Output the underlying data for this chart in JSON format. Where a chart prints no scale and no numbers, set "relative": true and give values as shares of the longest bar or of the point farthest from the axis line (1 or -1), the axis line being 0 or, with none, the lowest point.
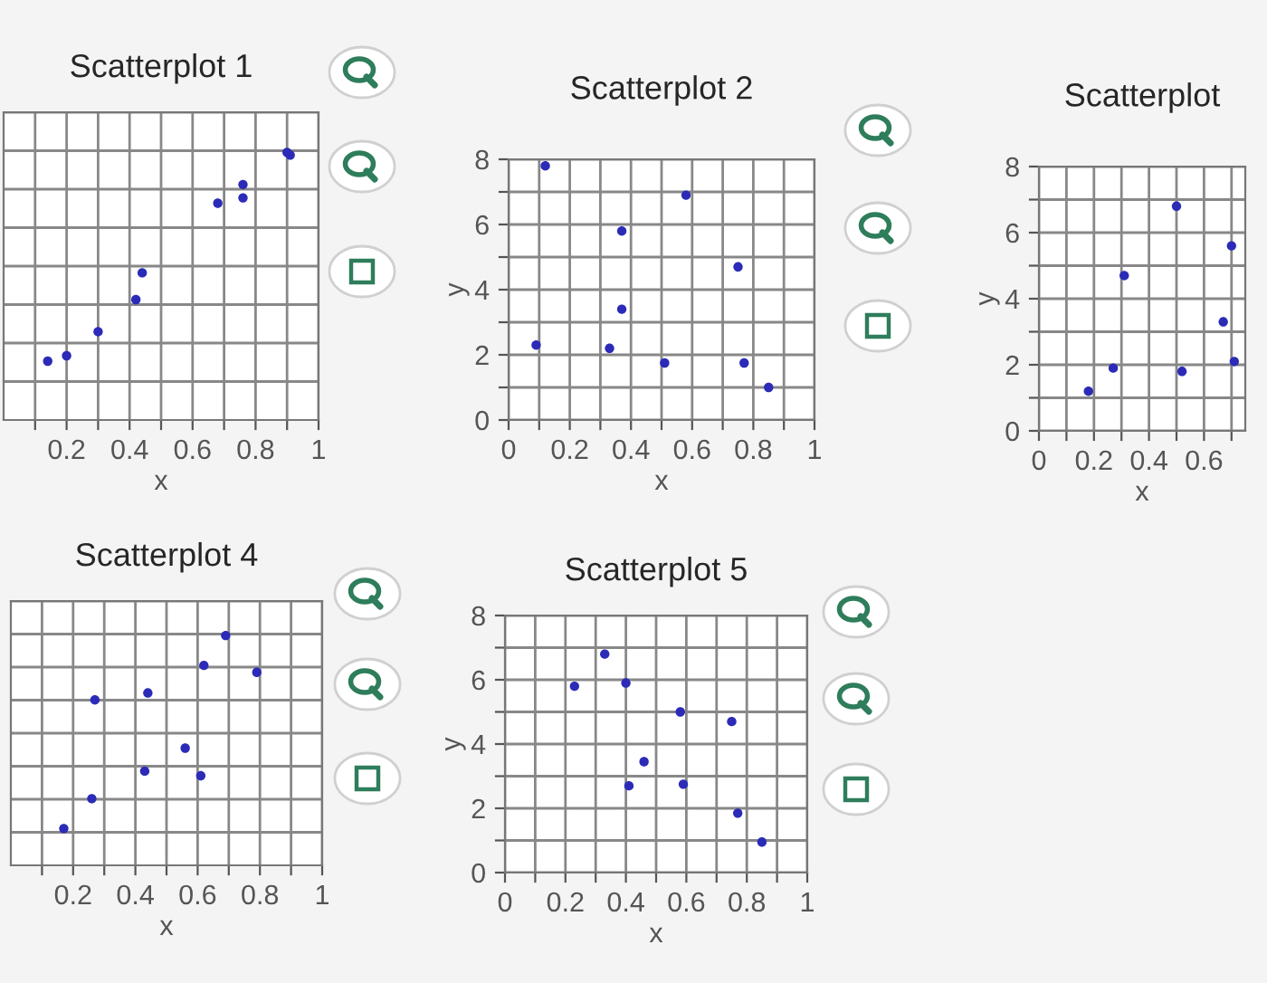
{
  "chart_data": [
    {
      "type": "scatter",
      "title": "Scatterplot 1",
      "xlabel": "x",
      "relative": true,
      "x": [
        0.14,
        0.2,
        0.3,
        0.42,
        0.44,
        0.68,
        0.76,
        0.76,
        0.9,
        0.91
      ],
      "values": [
        0.22,
        0.24,
        0.33,
        0.45,
        0.55,
        0.81,
        0.88,
        0.83,
        1,
        0.99
      ],
      "color": "#2b2bb8",
      "marker": "circle",
      "grid": true,
      "tick_labels": "x",
      "xlim": [
        0,
        1
      ],
      "xticks": [
        {
          "value": 0.1,
          "label": null
        },
        0.2,
        {
          "value": 0.3,
          "label": null
        },
        0.4,
        {
          "value": 0.5,
          "label": null
        },
        0.6,
        {
          "value": 0.7,
          "label": null
        },
        0.8,
        {
          "value": 0.9,
          "label": null
        },
        1
      ]
    },
    {
      "type": "scatter",
      "title": "Scatterplot 2",
      "xlabel": "x",
      "ylabel": "y",
      "x": [
        0.12,
        0.09,
        0.37,
        0.37,
        0.33,
        0.51,
        0.58,
        0.75,
        0.77,
        0.85
      ],
      "values": [
        7.8,
        2.3,
        5.8,
        3.4,
        2.2,
        1.75,
        6.9,
        4.7,
        1.75,
        1.0
      ],
      "color": "#2b2bb8",
      "marker": "circle",
      "grid": true,
      "xlim": [
        0,
        1
      ],
      "ylim": [
        0,
        8
      ],
      "xticks": [
        0,
        {
          "value": 0.1,
          "label": null
        },
        0.2,
        {
          "value": 0.3,
          "label": null
        },
        0.4,
        {
          "value": 0.5,
          "label": null
        },
        0.6,
        {
          "value": 0.7,
          "label": null
        },
        0.8,
        {
          "value": 0.9,
          "label": null
        },
        1
      ],
      "yticks": [
        0,
        {
          "value": 1,
          "label": null
        },
        2,
        {
          "value": 3,
          "label": null
        },
        4,
        {
          "value": 5,
          "label": null
        },
        6,
        {
          "value": 7,
          "label": null
        },
        8
      ]
    },
    {
      "type": "scatter",
      "title": "Scatterplot",
      "xlabel": "x",
      "ylabel": "y",
      "x": [
        0.5,
        0.7,
        0.31,
        0.67,
        0.71,
        0.27,
        0.52,
        0.18
      ],
      "values": [
        6.8,
        5.6,
        4.7,
        3.3,
        2.1,
        1.9,
        1.8,
        1.2
      ],
      "color": "#2b2bb8",
      "marker": "circle",
      "grid": true,
      "xlim": [
        0,
        0.75
      ],
      "ylim": [
        0,
        8
      ],
      "xticks": [
        0,
        {
          "value": 0.1,
          "label": null
        },
        0.2,
        {
          "value": 0.3,
          "label": null
        },
        0.4,
        {
          "value": 0.5,
          "label": null
        },
        0.6,
        {
          "value": 0.7,
          "label": null
        }
      ],
      "yticks": [
        0,
        {
          "value": 1,
          "label": null
        },
        2,
        {
          "value": 3,
          "label": null
        },
        4,
        {
          "value": 5,
          "label": null
        },
        6,
        {
          "value": 7,
          "label": null
        },
        8
      ]
    },
    {
      "type": "scatter",
      "title": "Scatterplot 4",
      "xlabel": "x",
      "relative": true,
      "x": [
        0.17,
        0.26,
        0.27,
        0.43,
        0.44,
        0.56,
        0.61,
        0.62,
        0.69,
        0.79
      ],
      "values": [
        0.16,
        0.29,
        0.72,
        0.41,
        0.75,
        0.51,
        0.39,
        0.87,
        1,
        0.84
      ],
      "color": "#2b2bb8",
      "marker": "circle",
      "grid": true,
      "tick_labels": "x",
      "xlim": [
        0,
        1
      ],
      "xticks": [
        {
          "value": 0.1,
          "label": null
        },
        0.2,
        {
          "value": 0.3,
          "label": null
        },
        0.4,
        {
          "value": 0.5,
          "label": null
        },
        0.6,
        {
          "value": 0.7,
          "label": null
        },
        0.8,
        {
          "value": 0.9,
          "label": null
        },
        1
      ]
    },
    {
      "type": "scatter",
      "title": "Scatterplot 5",
      "xlabel": "x",
      "ylabel": "y",
      "x": [
        0.23,
        0.33,
        0.4,
        0.58,
        0.75,
        0.46,
        0.41,
        0.59,
        0.77,
        0.85
      ],
      "values": [
        5.8,
        6.8,
        5.9,
        5.0,
        4.7,
        3.45,
        2.7,
        2.75,
        1.85,
        0.95
      ],
      "color": "#2b2bb8",
      "marker": "circle",
      "grid": true,
      "xlim": [
        0,
        1
      ],
      "ylim": [
        0,
        8
      ],
      "xticks": [
        0,
        {
          "value": 0.1,
          "label": null
        },
        0.2,
        {
          "value": 0.3,
          "label": null
        },
        0.4,
        {
          "value": 0.5,
          "label": null
        },
        0.6,
        {
          "value": 0.7,
          "label": null
        },
        0.8,
        {
          "value": 0.9,
          "label": null
        },
        1
      ],
      "yticks": [
        0,
        {
          "value": 1,
          "label": null
        },
        2,
        {
          "value": 3,
          "label": null
        },
        4,
        {
          "value": 5,
          "label": null
        },
        6,
        {
          "value": 7,
          "label": null
        },
        8
      ]
    }
  ]
}
